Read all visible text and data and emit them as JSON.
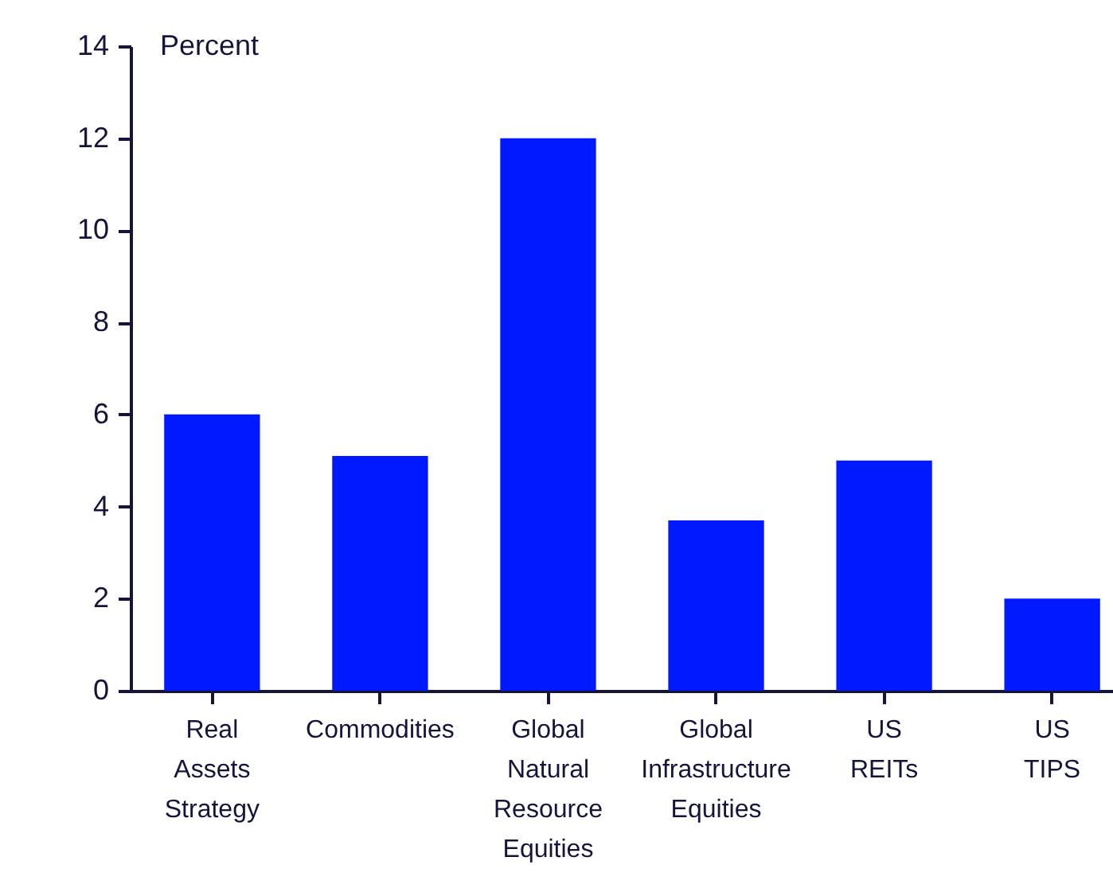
{
  "chart_data": {
    "type": "bar",
    "ylabel": "Percent",
    "categories": [
      "Real Assets Strategy",
      "Commodities",
      "Global Natural Resource Equities",
      "Global Infrastructure Equities",
      "US REITs",
      "US TIPS"
    ],
    "values": [
      6.0,
      5.1,
      12.0,
      3.7,
      5.0,
      2.0
    ],
    "color": "#0019ff",
    "ylim": [
      0,
      14
    ],
    "yticks": [
      0,
      2,
      4,
      6,
      8,
      10,
      12,
      14
    ],
    "grid": false
  }
}
